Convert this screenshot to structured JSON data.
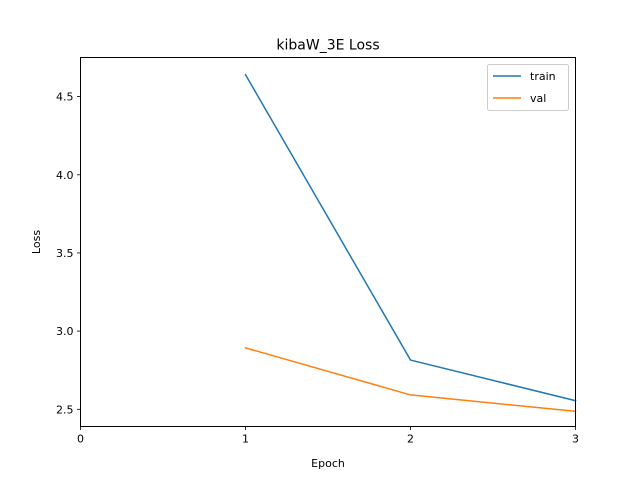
{
  "chart_data": {
    "type": "line",
    "title": "kibaW_3E Loss",
    "xlabel": "Epoch",
    "ylabel": "Loss",
    "xlim": [
      0,
      3
    ],
    "ylim": [
      2.39,
      4.75
    ],
    "xticks": [
      0,
      1,
      2,
      3
    ],
    "yticks": [
      2.5,
      3.0,
      3.5,
      4.0,
      4.5
    ],
    "ytick_labels": [
      "2.5",
      "3.0",
      "3.5",
      "4.0",
      "4.5"
    ],
    "grid": false,
    "legend": "top-right",
    "series": [
      {
        "name": "train",
        "color": "#1f77b4",
        "x": [
          1,
          2,
          3
        ],
        "values": [
          4.64,
          2.815,
          2.555
        ]
      },
      {
        "name": "val",
        "color": "#ff7f0e",
        "x": [
          1,
          2,
          3
        ],
        "values": [
          2.893,
          2.592,
          2.487
        ]
      }
    ]
  }
}
